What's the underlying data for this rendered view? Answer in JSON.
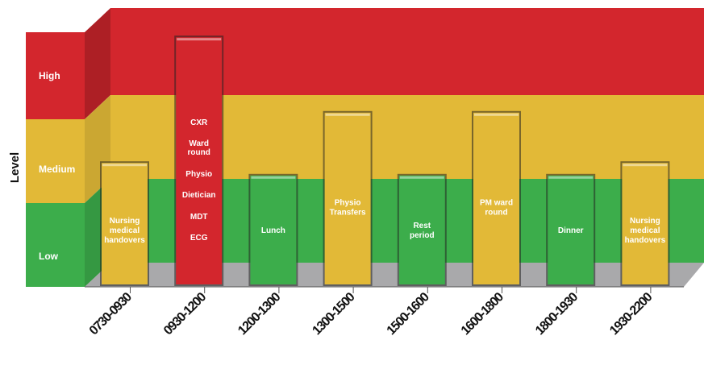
{
  "chart_data": {
    "type": "bar",
    "ylabel": "Level",
    "xlabel": "",
    "title": "",
    "levels": [
      "Low",
      "Medium",
      "High"
    ],
    "colors": {
      "Low": "#3cad4b",
      "Medium": "#e2b937",
      "High": "#d3262d",
      "floor": "#a9a9ab"
    },
    "categories": [
      "0730-0930",
      "0930-1200",
      "1200-1300",
      "1300-1500",
      "1500-1600",
      "1600-1800",
      "1800-1930",
      "1930-2200"
    ],
    "bars": [
      {
        "category": "0730-0930",
        "level": "Medium",
        "value": 1.45,
        "labels": [
          "Nursing",
          "medical",
          "handovers"
        ]
      },
      {
        "category": "0930-1200",
        "level": "High",
        "value": 2.95,
        "labels": [
          "CXR",
          "Ward round",
          "Physio",
          "Dietician",
          "MDT",
          "ECG"
        ]
      },
      {
        "category": "1200-1300",
        "level": "Low",
        "value": 1.3,
        "labels": [
          "Lunch"
        ]
      },
      {
        "category": "1300-1500",
        "level": "Medium",
        "value": 2.05,
        "labels": [
          "Physio",
          "Transfers"
        ]
      },
      {
        "category": "1500-1600",
        "level": "Low",
        "value": 1.3,
        "labels": [
          "Rest",
          "period"
        ]
      },
      {
        "category": "1600-1800",
        "level": "Medium",
        "value": 2.05,
        "labels": [
          "PM ward",
          "round"
        ]
      },
      {
        "category": "1800-1930",
        "level": "Low",
        "value": 1.3,
        "labels": [
          "Dinner"
        ]
      },
      {
        "category": "1930-2200",
        "level": "Medium",
        "value": 1.45,
        "labels": [
          "Nursing",
          "medical",
          "handovers"
        ]
      }
    ]
  }
}
